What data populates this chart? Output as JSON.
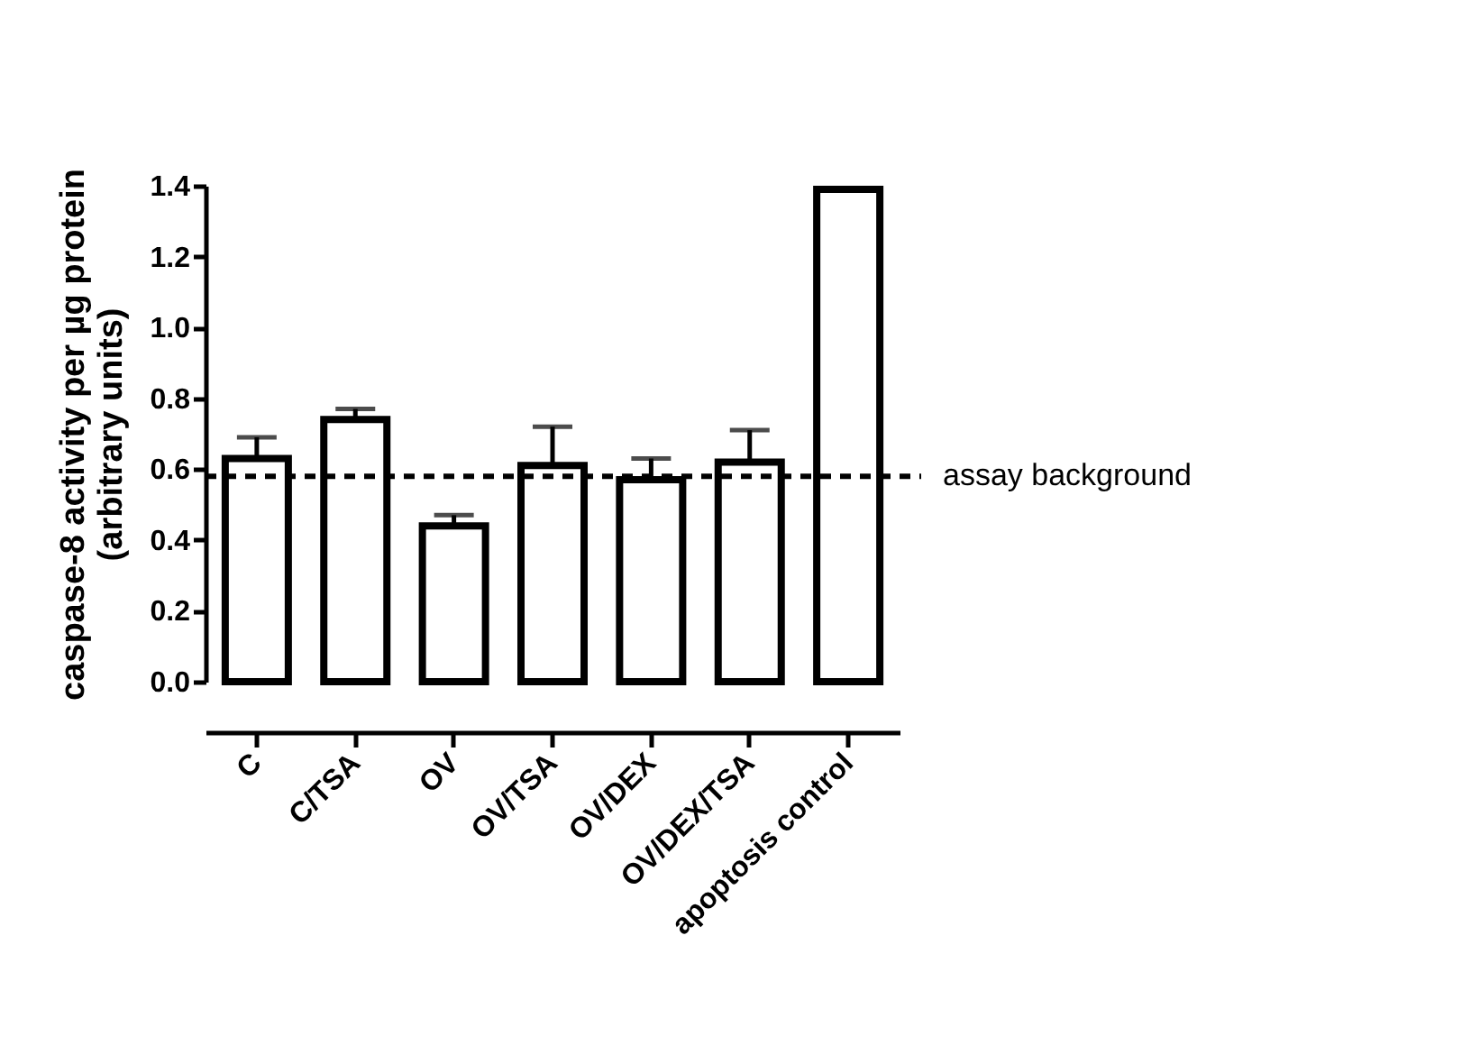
{
  "chart_data": {
    "type": "bar",
    "ylabel": "caspase-8 activity per µg protein\n(arbitrary units)",
    "categories": [
      "C",
      "C/TSA",
      "OV",
      "OV/TSA",
      "OV/DEX",
      "OV/DEX/TSA",
      "apoptosis control"
    ],
    "values": [
      0.63,
      0.74,
      0.44,
      0.61,
      0.57,
      0.62,
      1.39
    ],
    "errors": [
      0.06,
      0.03,
      0.03,
      0.11,
      0.06,
      0.09,
      null
    ],
    "color": "#ffffff",
    "ylim": [
      0,
      1.4
    ],
    "yticks": [
      {
        "value": 0,
        "label": "0.0"
      },
      {
        "value": 0.2,
        "label": "0.2"
      },
      {
        "value": 0.4,
        "label": "0.4"
      },
      {
        "value": 0.6,
        "label": "0.6"
      },
      {
        "value": 0.8,
        "label": "0.8"
      },
      {
        "value": 1,
        "label": "1.0"
      },
      {
        "value": 1.2,
        "label": "1.2"
      },
      {
        "value": 1.4,
        "label": "1.4"
      }
    ],
    "ref_lines": [
      {
        "axis": "y",
        "value": 0.58,
        "label": "assay background",
        "color": "#000000",
        "line_style": "dashed"
      }
    ],
    "grid": false
  }
}
